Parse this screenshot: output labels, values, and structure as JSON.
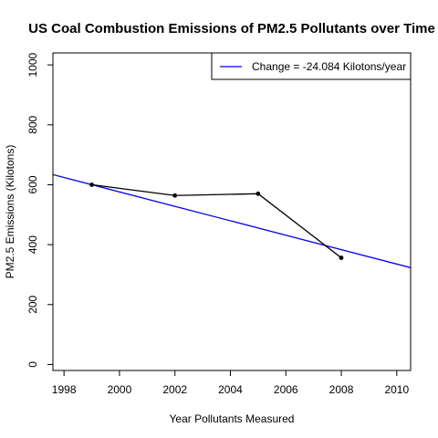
{
  "chart_data": {
    "type": "line",
    "title": "US Coal Combustion Emissions of PM2.5 Pollutants over Time",
    "xlabel": "Year Pollutants Measured",
    "ylabel": "PM2.5 Emissions (Kilotons)",
    "xlim": [
      1997.6,
      2010.5
    ],
    "ylim": [
      -20,
      1040
    ],
    "x_ticks": [
      1998,
      2000,
      2002,
      2004,
      2006,
      2008,
      2010
    ],
    "x_tick_labels": [
      "1998",
      "2000",
      "2002",
      "2004",
      "2006",
      "2008",
      "2010"
    ],
    "y_ticks": [
      0,
      200,
      400,
      600,
      800,
      1000
    ],
    "y_tick_labels": [
      "0",
      "200",
      "400",
      "600",
      "800",
      "1000"
    ],
    "grid": false,
    "legend_position": "top-right",
    "series": [
      {
        "x": [
          1999,
          2002,
          2005,
          2008
        ],
        "y": [
          600,
          564,
          570,
          356
        ],
        "color": "#000000",
        "markers": true
      },
      {
        "name": "Change = -24.084 Kilotons/year",
        "type": "regression-line",
        "slope": -24.084,
        "intercept": 48744,
        "color": "#0000ff"
      }
    ]
  }
}
